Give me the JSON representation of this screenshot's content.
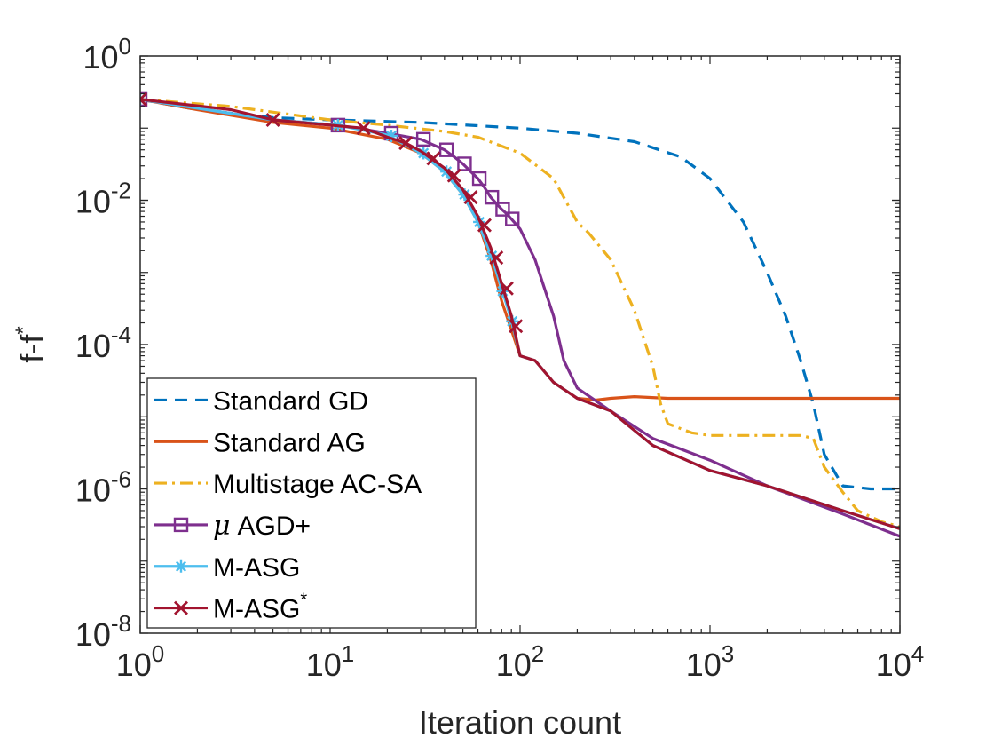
{
  "chart_data": {
    "type": "line",
    "title": "",
    "xscale": "log",
    "yscale": "log",
    "xlabel": "Iteration count",
    "ylabel_main": "f-f",
    "ylabel_sup": "*",
    "xlim": [
      1,
      10000
    ],
    "ylim": [
      1e-08,
      1
    ],
    "xticks": [
      {
        "value": 1,
        "base": "10",
        "exp": "0"
      },
      {
        "value": 10,
        "base": "10",
        "exp": "1"
      },
      {
        "value": 100,
        "base": "10",
        "exp": "2"
      },
      {
        "value": 1000,
        "base": "10",
        "exp": "3"
      },
      {
        "value": 10000,
        "base": "10",
        "exp": "4"
      }
    ],
    "yticks": [
      {
        "value": 1,
        "base": "10",
        "exp": "0"
      },
      {
        "value": 0.01,
        "base": "10",
        "exp": "-2"
      },
      {
        "value": 0.0001,
        "base": "10",
        "exp": "-4"
      },
      {
        "value": 1e-06,
        "base": "10",
        "exp": "-6"
      },
      {
        "value": 1e-08,
        "base": "10",
        "exp": "-8"
      }
    ],
    "legend_position": "bottom-left",
    "series": [
      {
        "name": "Standard GD",
        "legend_label": "Standard GD",
        "color": "#0072BD",
        "dash": "dashed",
        "marker": "none",
        "x": [
          1,
          2,
          5,
          10,
          30,
          100,
          200,
          400,
          700,
          1000,
          1500,
          2000,
          2500,
          3000,
          3500,
          4000,
          5000,
          7000,
          10000
        ],
        "y": [
          0.25,
          0.18,
          0.14,
          0.13,
          0.12,
          0.1,
          0.085,
          0.065,
          0.04,
          0.02,
          0.005,
          0.001,
          0.00025,
          6e-05,
          1.5e-05,
          3e-06,
          1.1e-06,
          1e-06,
          1e-06
        ]
      },
      {
        "name": "Standard AG",
        "legend_label": "Standard AG",
        "color": "#D95319",
        "dash": "solid",
        "marker": "none",
        "x": [
          1,
          2,
          5,
          10,
          20,
          30,
          40,
          50,
          60,
          70,
          80,
          100,
          120,
          150,
          200,
          250,
          300,
          400,
          600,
          1000,
          3000,
          10000
        ],
        "y": [
          0.25,
          0.18,
          0.12,
          0.1,
          0.07,
          0.045,
          0.025,
          0.012,
          0.005,
          0.0015,
          0.0004,
          7e-05,
          6e-05,
          3e-05,
          1.8e-05,
          1.7e-05,
          1.8e-05,
          1.9e-05,
          1.8e-05,
          1.8e-05,
          1.8e-05,
          1.8e-05
        ]
      },
      {
        "name": "Multistage AC-SA",
        "legend_label": "Multistage AC-SA",
        "color": "#EDB120",
        "dash": "dashdot",
        "marker": "none",
        "x": [
          1,
          3,
          10,
          20,
          40,
          60,
          100,
          150,
          200,
          230,
          300,
          400,
          500,
          550,
          600,
          800,
          1000,
          2000,
          3000,
          3500,
          4000,
          5000,
          6000,
          8000,
          10000
        ],
        "y": [
          0.25,
          0.2,
          0.13,
          0.11,
          0.09,
          0.075,
          0.045,
          0.02,
          0.005,
          0.0035,
          0.0015,
          0.0003,
          5e-05,
          1.5e-05,
          8e-06,
          6e-06,
          5.5e-06,
          5.5e-06,
          5.5e-06,
          5e-06,
          2e-06,
          9e-07,
          5e-07,
          3.5e-07,
          3e-07
        ]
      },
      {
        "name": "μ AGD+",
        "legend_mu": "μ",
        "legend_label": "AGD+",
        "color": "#7E2F8E",
        "dash": "solid",
        "marker": "square",
        "x": [
          1,
          5,
          11,
          20,
          30,
          40,
          45,
          50,
          55,
          60,
          65,
          70,
          75,
          80,
          85,
          90,
          100,
          120,
          150,
          170,
          200,
          300,
          500,
          1000,
          2000,
          5000,
          10000
        ],
        "y": [
          0.25,
          0.13,
          0.11,
          0.085,
          0.07,
          0.05,
          0.04,
          0.032,
          0.025,
          0.02,
          0.015,
          0.011,
          0.009,
          0.0075,
          0.0065,
          0.0055,
          0.004,
          0.0015,
          0.00025,
          6e-05,
          2.5e-05,
          1.2e-05,
          5e-06,
          2.5e-06,
          1.1e-06,
          4.5e-07,
          2.2e-07
        ],
        "marker_x": [
          1,
          11,
          21,
          31,
          41,
          51,
          61,
          71,
          81,
          91
        ],
        "marker_y": [
          0.25,
          0.11,
          0.085,
          0.07,
          0.05,
          0.032,
          0.02,
          0.011,
          0.0075,
          0.0055
        ]
      },
      {
        "name": "M-ASG",
        "legend_label": "M-ASG",
        "color": "#4DBEEE",
        "dash": "solid",
        "marker": "asterisk",
        "x": [
          1,
          5,
          11,
          20,
          30,
          40,
          50,
          60,
          70,
          80,
          90,
          100,
          120,
          150,
          200,
          300,
          500,
          1000,
          2000,
          5000,
          10000
        ],
        "y": [
          0.25,
          0.13,
          0.11,
          0.08,
          0.045,
          0.025,
          0.012,
          0.005,
          0.0018,
          0.0006,
          0.00022,
          7e-05,
          6e-05,
          3e-05,
          1.8e-05,
          1.2e-05,
          4e-06,
          1.8e-06,
          1.1e-06,
          5e-07,
          2.8e-07
        ],
        "marker_x": [
          1,
          11,
          21,
          31,
          41,
          51,
          61,
          71,
          81,
          91
        ],
        "marker_y": [
          0.25,
          0.11,
          0.078,
          0.045,
          0.025,
          0.012,
          0.005,
          0.0017,
          0.00055,
          0.00021
        ]
      },
      {
        "name": "M-ASG*",
        "legend_label": "M-ASG",
        "legend_sup": "*",
        "color": "#A2142F",
        "dash": "solid",
        "marker": "x",
        "x": [
          1,
          3,
          5,
          10,
          15,
          20,
          25,
          30,
          40,
          50,
          60,
          70,
          80,
          90,
          100,
          120,
          150,
          200,
          300,
          500,
          1000,
          2000,
          5000,
          10000
        ],
        "y": [
          0.25,
          0.18,
          0.13,
          0.11,
          0.1,
          0.075,
          0.062,
          0.048,
          0.028,
          0.014,
          0.006,
          0.0022,
          0.0007,
          0.00025,
          7e-05,
          6e-05,
          3e-05,
          1.8e-05,
          1.2e-05,
          4e-06,
          1.8e-06,
          1.1e-06,
          5e-07,
          2.8e-07
        ],
        "marker_x": [
          1,
          5,
          15,
          25,
          35,
          45,
          55,
          65,
          75,
          85,
          95
        ],
        "marker_y": [
          0.25,
          0.13,
          0.1,
          0.062,
          0.038,
          0.022,
          0.011,
          0.0045,
          0.0016,
          0.0006,
          0.00018
        ]
      }
    ]
  }
}
